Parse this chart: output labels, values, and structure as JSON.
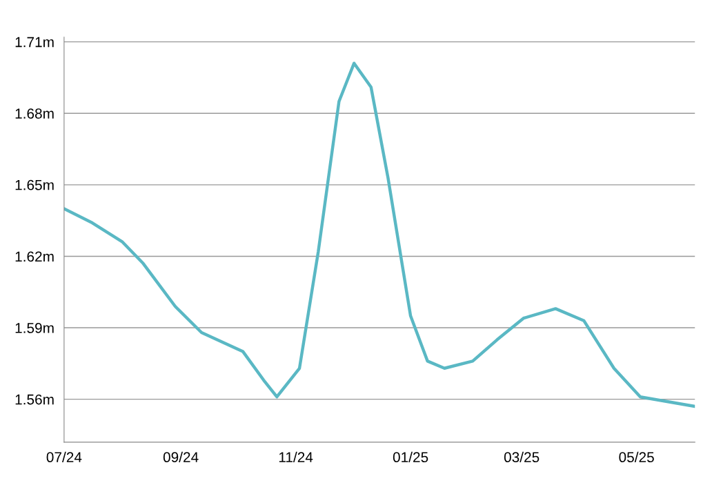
{
  "chart_data": {
    "type": "line",
    "x": [
      "2024-07-01",
      "2024-07-16",
      "2024-08-01",
      "2024-08-12",
      "2024-08-29",
      "2024-09-12",
      "2024-10-04",
      "2024-10-15",
      "2024-10-22",
      "2024-11-03",
      "2024-11-13",
      "2024-11-24",
      "2024-12-02",
      "2024-12-11",
      "2024-12-20",
      "2025-01-01",
      "2025-01-10",
      "2025-01-19",
      "2025-02-03",
      "2025-02-16",
      "2025-03-02",
      "2025-03-19",
      "2025-04-03",
      "2025-04-19",
      "2025-05-03",
      "2025-06-01"
    ],
    "series": [
      {
        "color": "#5ab8c4",
        "values": [
          1.64,
          1.634,
          1.626,
          1.617,
          1.599,
          1.588,
          1.58,
          1.568,
          1.561,
          1.573,
          1.622,
          1.685,
          1.701,
          1.691,
          1.653,
          1.595,
          1.576,
          1.573,
          1.576,
          1.585,
          1.594,
          1.598,
          1.593,
          1.573,
          1.561,
          1.557
        ]
      }
    ],
    "xlim": [
      "2024-07-01",
      "2025-06-01"
    ],
    "xticks": [
      {
        "value": "2024-07-01",
        "label": "07/24"
      },
      {
        "value": "2024-09-01",
        "label": "09/24"
      },
      {
        "value": "2024-11-01",
        "label": "11/24"
      },
      {
        "value": "2025-01-01",
        "label": "01/25"
      },
      {
        "value": "2025-03-01",
        "label": "03/25"
      },
      {
        "value": "2025-05-01",
        "label": "05/25"
      }
    ],
    "ylim": [
      1.542,
      1.712
    ],
    "yticks": [
      {
        "value": 1.56,
        "label": "1.56m"
      },
      {
        "value": 1.59,
        "label": "1.59m"
      },
      {
        "value": 1.62,
        "label": "1.62m"
      },
      {
        "value": 1.65,
        "label": "1.65m"
      },
      {
        "value": 1.68,
        "label": "1.68m"
      },
      {
        "value": 1.71,
        "label": "1.71m"
      }
    ],
    "grid": "y",
    "legend": false,
    "marker": "none",
    "line_style": "solid"
  }
}
